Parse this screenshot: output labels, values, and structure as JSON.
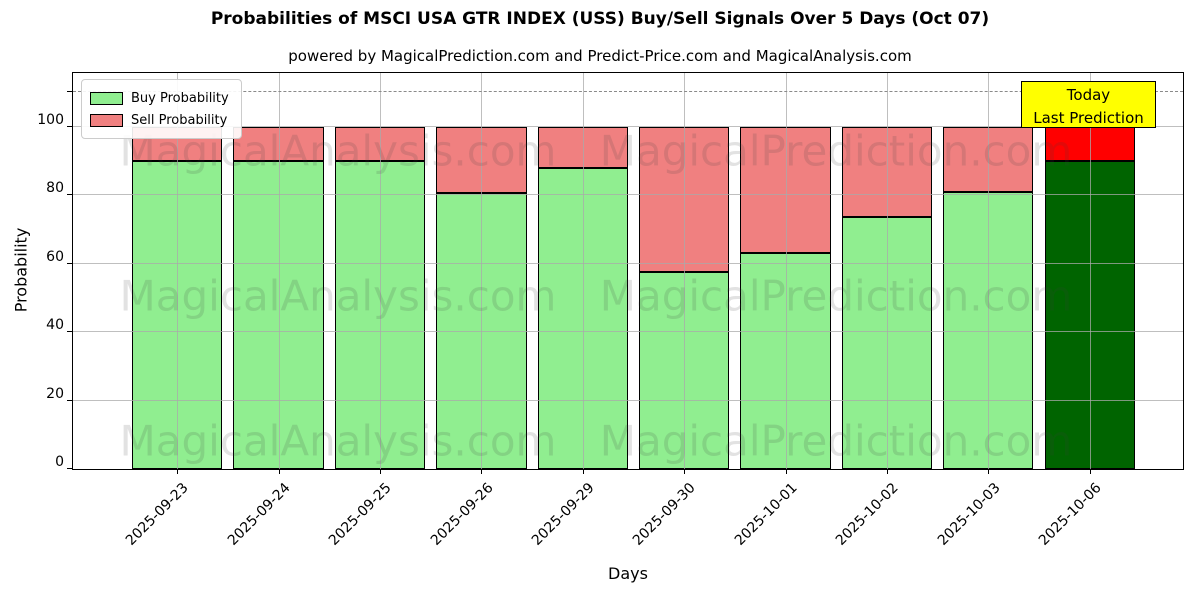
{
  "figure": {
    "title": "Probabilities of MSCI USA GTR INDEX (USS) Buy/Sell Signals Over 5 Days (Oct 07)",
    "subtitle": "powered by MagicalPrediction.com and Predict-Price.com and MagicalAnalysis.com"
  },
  "chart_data": {
    "type": "bar",
    "stacked": true,
    "title": "Probabilities of MSCI USA GTR INDEX (USS) Buy/Sell Signals Over 5 Days (Oct 07)",
    "subtitle": "powered by MagicalPrediction.com and Predict-Price.com and MagicalAnalysis.com",
    "xlabel": "Days",
    "ylabel": "Probability",
    "categories": [
      "2025-09-23",
      "2025-09-24",
      "2025-09-25",
      "2025-09-26",
      "2025-09-29",
      "2025-09-30",
      "2025-10-01",
      "2025-10-02",
      "2025-10-03",
      "2025-10-06"
    ],
    "series": [
      {
        "name": "Buy Probability",
        "color": "#90ee90",
        "last_bar_color": "#006400",
        "values": [
          90,
          90,
          90,
          80.5,
          88,
          57.5,
          63,
          73.5,
          81,
          90
        ]
      },
      {
        "name": "Sell Probability",
        "color": "#f08080",
        "last_bar_color": "#ff0000",
        "values": [
          10,
          10,
          10,
          19.5,
          12,
          42.5,
          37,
          26.5,
          19,
          10
        ]
      }
    ],
    "ylim": [
      0,
      115.5
    ],
    "yticks": [
      0,
      20,
      40,
      60,
      80,
      100
    ],
    "unlabeled_tick": 110,
    "dashed_line_y": 110,
    "grid": true,
    "legend_position": "upper left",
    "bar_edge_color": "#000000"
  },
  "legend": {
    "buy_label": "Buy Probability",
    "sell_label": "Sell Probability"
  },
  "annotation_box": {
    "line1": "Today",
    "line2": "Last Prediction",
    "bg_color": "#ffff00"
  },
  "watermarks": {
    "left_text": "MagicalAnalysis.com",
    "right_text": "MagicalPrediction.com"
  }
}
